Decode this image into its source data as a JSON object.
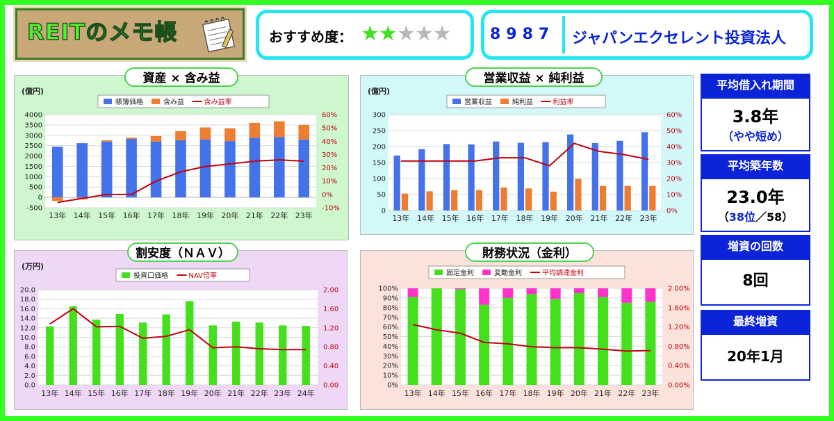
{
  "header": {
    "logo_text": "REITのメモ帳",
    "rating_label": "おすすめ度：",
    "rating_value": 2,
    "rating_max": 5,
    "code": "8987",
    "name": "ジャパンエクセレント投資法人"
  },
  "side": {
    "avg_borrow": {
      "title": "平均借入れ期間",
      "value": "3.8年",
      "note": "（やや短め）"
    },
    "avg_age": {
      "title": "平均築年数",
      "value": "23.0年",
      "rank_prefix": "（",
      "rank": "38位",
      "rank_suffix": "／58）"
    },
    "capital_count": {
      "title": "増資の回数",
      "value": "8回"
    },
    "last_capital": {
      "title": "最終増資",
      "value": "20年1月"
    }
  },
  "colors": {
    "blue_bar": "#4472e8",
    "orange_bar": "#ed7d31",
    "green_bar": "#44e01c",
    "pink_bar": "#ff33cc",
    "line_red": "#c0000e",
    "accent_blue": "#0b24d8",
    "frame_green": "#33ff22",
    "cyan": "#22e6f0",
    "star_on": "#40e020",
    "star_off": "#b8b8b8"
  },
  "chart_data": [
    {
      "id": "assets",
      "type": "bar",
      "title": "資産 × 含み益",
      "ylabel": "(億円)",
      "categories": [
        "13年",
        "14年",
        "15年",
        "16年",
        "17年",
        "18年",
        "19年",
        "20年",
        "21年",
        "22年",
        "23年"
      ],
      "stacked": true,
      "series": [
        {
          "name": "帳簿価格",
          "type": "bar",
          "axis": "left",
          "values": [
            2450,
            2620,
            2700,
            2830,
            2700,
            2760,
            2800,
            2720,
            2880,
            2920,
            2800
          ]
        },
        {
          "name": "含み益",
          "type": "bar",
          "axis": "left",
          "values": [
            -170,
            -100,
            60,
            60,
            260,
            440,
            580,
            620,
            720,
            760,
            700
          ]
        },
        {
          "name": "含み益率",
          "type": "line",
          "axis": "right",
          "values": [
            -6,
            -3,
            0,
            0,
            10,
            17,
            21,
            23,
            25,
            26,
            25
          ]
        }
      ],
      "ylim": [
        -500,
        4000
      ],
      "yticks": [
        -500,
        0,
        500,
        1000,
        1500,
        2000,
        2500,
        3000,
        3500,
        4000
      ],
      "y2lim": [
        -10,
        60
      ],
      "y2ticks": [
        -10,
        0,
        10,
        20,
        30,
        40,
        50,
        60
      ],
      "y2tick_labels": [
        "-10%",
        "0%",
        "10%",
        "20%",
        "30%",
        "40%",
        "50%",
        "60%"
      ],
      "legend": "top"
    },
    {
      "id": "revenue",
      "type": "bar",
      "title": "営業収益 × 純利益",
      "ylabel": "(億円)",
      "categories": [
        "13年",
        "14年",
        "15年",
        "16年",
        "17年",
        "18年",
        "19年",
        "20年",
        "21年",
        "22年",
        "23年"
      ],
      "stacked": false,
      "series": [
        {
          "name": "営業収益",
          "type": "bar",
          "axis": "left",
          "values": [
            172,
            192,
            208,
            207,
            216,
            212,
            214,
            238,
            211,
            218,
            245
          ]
        },
        {
          "name": "純利益",
          "type": "bar",
          "axis": "left",
          "values": [
            53,
            60,
            64,
            64,
            72,
            69,
            59,
            99,
            77,
            77,
            77
          ]
        },
        {
          "name": "利益率",
          "type": "line",
          "axis": "right",
          "values": [
            31,
            31,
            31,
            31,
            33,
            33,
            28,
            42,
            37,
            35,
            32
          ]
        }
      ],
      "ylim": [
        0,
        300
      ],
      "yticks": [
        0,
        50,
        100,
        150,
        200,
        250,
        300
      ],
      "y2lim": [
        0,
        60
      ],
      "y2ticks": [
        0,
        10,
        20,
        30,
        40,
        50,
        60
      ],
      "y2tick_labels": [
        "0%",
        "10%",
        "20%",
        "30%",
        "40%",
        "50%",
        "60%"
      ],
      "legend": "top"
    },
    {
      "id": "nav",
      "type": "bar",
      "title": "割安度（ＮＡＶ）",
      "ylabel": "(万円)",
      "categories": [
        "13年",
        "14年",
        "15年",
        "16年",
        "17年",
        "18年",
        "19年",
        "20年",
        "21年",
        "22年",
        "23年",
        "24年"
      ],
      "stacked": false,
      "series": [
        {
          "name": "投資口価格",
          "type": "bar",
          "axis": "left",
          "values": [
            12.3,
            16.5,
            13.7,
            14.9,
            13.1,
            14.8,
            17.6,
            12.5,
            13.3,
            13.1,
            12.5,
            12.4
          ]
        },
        {
          "name": "NAV倍率",
          "type": "line",
          "axis": "right",
          "values": [
            1.28,
            1.6,
            1.22,
            1.23,
            0.98,
            1.02,
            1.16,
            0.78,
            0.8,
            0.76,
            0.74,
            0.74
          ]
        }
      ],
      "ylim": [
        0,
        20
      ],
      "yticks": [
        0,
        2,
        4,
        6,
        8,
        10,
        12,
        14,
        16,
        18,
        20
      ],
      "ytick_labels": [
        "0.0",
        "2.0",
        "4.0",
        "6.0",
        "8.0",
        "10.0",
        "12.0",
        "14.0",
        "16.0",
        "18.0",
        "20.0"
      ],
      "y2lim": [
        0,
        2
      ],
      "y2ticks": [
        0,
        0.4,
        0.8,
        1.2,
        1.6,
        2.0
      ],
      "y2tick_labels": [
        "0.00",
        "0.40",
        "0.80",
        "1.20",
        "1.60",
        "2.00"
      ],
      "legend": "top"
    },
    {
      "id": "finance",
      "type": "bar",
      "title": "財務状況（金利）",
      "categories": [
        "13年",
        "14年",
        "15年",
        "16年",
        "17年",
        "18年",
        "19年",
        "20年",
        "21年",
        "22年",
        "23年"
      ],
      "stacked": true,
      "series": [
        {
          "name": "固定金利",
          "type": "bar",
          "axis": "left",
          "values": [
            91,
            100,
            99,
            83,
            90,
            94,
            89,
            95,
            91,
            85,
            86
          ]
        },
        {
          "name": "変動金利",
          "type": "bar",
          "axis": "left",
          "values": [
            9,
            0,
            1,
            17,
            10,
            6,
            11,
            5,
            9,
            15,
            14
          ]
        },
        {
          "name": "平均調達金利",
          "type": "line",
          "axis": "right",
          "values": [
            1.25,
            1.14,
            1.07,
            0.88,
            0.85,
            0.79,
            0.77,
            0.77,
            0.74,
            0.7,
            0.71
          ]
        }
      ],
      "ylim": [
        0,
        100
      ],
      "yticks": [
        0,
        10,
        20,
        30,
        40,
        50,
        60,
        70,
        80,
        90,
        100
      ],
      "ytick_labels": [
        "0%",
        "10%",
        "20%",
        "30%",
        "40%",
        "50%",
        "60%",
        "70%",
        "80%",
        "90%",
        "100%"
      ],
      "y2lim": [
        0,
        2
      ],
      "y2ticks": [
        0,
        0.4,
        0.8,
        1.2,
        1.6,
        2.0
      ],
      "y2tick_labels": [
        "0.00%",
        "0.40%",
        "0.80%",
        "1.20%",
        "1.60%",
        "2.00%"
      ],
      "legend": "top"
    }
  ]
}
